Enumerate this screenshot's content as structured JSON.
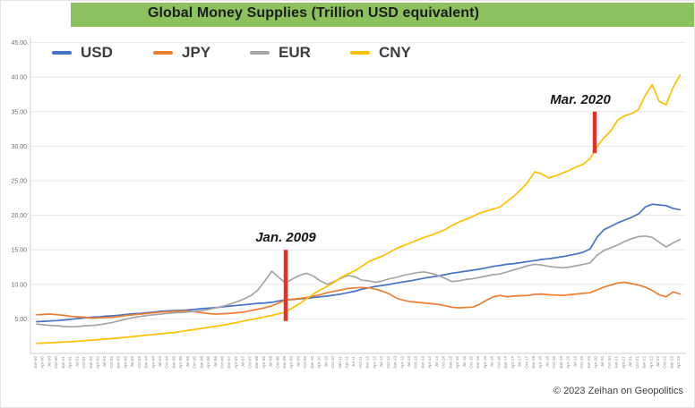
{
  "header": {
    "title": "Global Money Supplies (Trillion USD equivalent)",
    "bar_color": "#8cc25e"
  },
  "legend": [
    {
      "label": "USD",
      "color": "#4472c4"
    },
    {
      "label": "JPY",
      "color": "#ed7d31"
    },
    {
      "label": "EUR",
      "color": "#a5a5a5"
    },
    {
      "label": "CNY",
      "color": "#ffc000"
    }
  ],
  "footer": {
    "copyright": "© 2023 Zeihan on Geopolitics"
  },
  "colors": {
    "annotation_red": "#e53228",
    "gridline": "#e8e8e8",
    "axis": "#cccccc"
  },
  "chart_data": {
    "type": "line",
    "title": "Global Money Supplies (Trillion USD equivalent)",
    "ylabel": "Trillion USD equivalent",
    "ylim": [
      0,
      45
    ],
    "yticks": [
      5,
      10,
      15,
      20,
      25,
      30,
      35,
      40,
      45
    ],
    "grid": "horizontal",
    "legend_position": "top",
    "x_start_year": 2000.0,
    "x_step_years": 0.25,
    "x_tick_labels": [
      "Jan-00",
      "Apr-00",
      "Jul-00",
      "Oct-00",
      "Jan-01",
      "Apr-01",
      "Jul-01",
      "Oct-01",
      "Jan-02",
      "Apr-02",
      "Jul-02",
      "Oct-02",
      "Jan-03",
      "Apr-03",
      "Jul-03",
      "Oct-03",
      "Jan-04",
      "Apr-04",
      "Jul-04",
      "Oct-04",
      "Jan-05",
      "Apr-05",
      "Jul-05",
      "Oct-05",
      "Jan-06",
      "Apr-06",
      "Jul-06",
      "Oct-06",
      "Jan-07",
      "Apr-07",
      "Jul-07",
      "Oct-07",
      "Jan-08",
      "Apr-08",
      "Jul-08",
      "Oct-08",
      "Jan-09",
      "Apr-09",
      "Jul-09",
      "Oct-09",
      "Jan-10",
      "Apr-10",
      "Jul-10",
      "Oct-10",
      "Jan-11",
      "Apr-11",
      "Jul-11",
      "Oct-11",
      "Jan-12",
      "Apr-12",
      "Jul-12",
      "Oct-12",
      "Jan-13",
      "Apr-13",
      "Jul-13",
      "Oct-13",
      "Jan-14",
      "Apr-14",
      "Jul-14",
      "Oct-14",
      "Jan-15",
      "Apr-15",
      "Jul-15",
      "Oct-15",
      "Jan-16",
      "Apr-16",
      "Jul-16",
      "Oct-16",
      "Jan-17",
      "Apr-17",
      "Jul-17",
      "Oct-17",
      "Jan-18",
      "Apr-18",
      "Jul-18",
      "Oct-18",
      "Jan-19",
      "Apr-19",
      "Jul-19",
      "Oct-19",
      "Jan-20",
      "Apr-20",
      "Jul-20",
      "Oct-20",
      "Jan-21",
      "Apr-21",
      "Jul-21",
      "Oct-21",
      "Jan-22",
      "Apr-22",
      "Jul-22",
      "Oct-22",
      "Jan-23",
      "Apr-23"
    ],
    "series": [
      {
        "name": "USD",
        "color": "#4472c4",
        "values": [
          4.6,
          4.65,
          4.7,
          4.75,
          4.85,
          4.95,
          5.05,
          5.15,
          5.25,
          5.3,
          5.4,
          5.45,
          5.55,
          5.65,
          5.75,
          5.8,
          5.9,
          6.0,
          6.1,
          6.15,
          6.2,
          6.25,
          6.3,
          6.4,
          6.5,
          6.55,
          6.65,
          6.75,
          6.85,
          6.95,
          7.05,
          7.15,
          7.25,
          7.3,
          7.4,
          7.6,
          7.75,
          7.8,
          7.9,
          7.95,
          8.1,
          8.2,
          8.3,
          8.45,
          8.6,
          8.8,
          9.0,
          9.3,
          9.5,
          9.7,
          9.85,
          10.0,
          10.2,
          10.35,
          10.5,
          10.7,
          10.9,
          11.05,
          11.2,
          11.4,
          11.6,
          11.75,
          11.9,
          12.05,
          12.2,
          12.4,
          12.6,
          12.75,
          12.9,
          13.0,
          13.15,
          13.3,
          13.45,
          13.6,
          13.7,
          13.85,
          14.0,
          14.2,
          14.4,
          14.65,
          15.1,
          16.8,
          17.9,
          18.4,
          18.9,
          19.3,
          19.7,
          20.2,
          21.2,
          21.6,
          21.5,
          21.4,
          21.0,
          20.8
        ]
      },
      {
        "name": "JPY",
        "color": "#ed7d31",
        "values": [
          5.6,
          5.65,
          5.7,
          5.6,
          5.5,
          5.35,
          5.3,
          5.25,
          5.1,
          5.15,
          5.2,
          5.25,
          5.35,
          5.5,
          5.6,
          5.7,
          5.8,
          5.9,
          6.0,
          6.05,
          6.1,
          6.15,
          6.1,
          6.0,
          5.9,
          5.75,
          5.7,
          5.75,
          5.8,
          5.9,
          6.0,
          6.2,
          6.4,
          6.6,
          6.9,
          7.3,
          7.7,
          7.85,
          7.95,
          8.1,
          8.3,
          8.5,
          8.8,
          9.0,
          9.2,
          9.4,
          9.5,
          9.55,
          9.5,
          9.3,
          9.0,
          8.6,
          8.0,
          7.7,
          7.5,
          7.4,
          7.3,
          7.2,
          7.1,
          6.9,
          6.7,
          6.6,
          6.65,
          6.7,
          7.1,
          7.7,
          8.2,
          8.4,
          8.2,
          8.3,
          8.35,
          8.4,
          8.55,
          8.6,
          8.5,
          8.45,
          8.4,
          8.5,
          8.6,
          8.7,
          8.8,
          9.2,
          9.6,
          9.9,
          10.2,
          10.3,
          10.1,
          9.9,
          9.6,
          9.1,
          8.5,
          8.2,
          8.9,
          8.6
        ]
      },
      {
        "name": "EUR",
        "color": "#a5a5a5",
        "values": [
          4.25,
          4.15,
          4.05,
          4.0,
          3.9,
          3.85,
          3.9,
          4.0,
          4.05,
          4.15,
          4.3,
          4.5,
          4.75,
          5.0,
          5.2,
          5.35,
          5.5,
          5.6,
          5.7,
          5.8,
          5.9,
          5.95,
          6.0,
          6.1,
          6.25,
          6.4,
          6.6,
          6.85,
          7.15,
          7.5,
          7.9,
          8.4,
          9.2,
          10.5,
          11.9,
          11.0,
          10.2,
          10.8,
          11.3,
          11.6,
          11.2,
          10.5,
          10.0,
          10.4,
          10.9,
          11.3,
          11.1,
          10.6,
          10.5,
          10.3,
          10.5,
          10.8,
          11.0,
          11.3,
          11.5,
          11.7,
          11.8,
          11.6,
          11.3,
          10.9,
          10.4,
          10.5,
          10.7,
          10.8,
          11.0,
          11.2,
          11.4,
          11.5,
          11.8,
          12.1,
          12.4,
          12.7,
          12.9,
          12.8,
          12.6,
          12.5,
          12.4,
          12.5,
          12.7,
          12.9,
          13.1,
          14.2,
          14.9,
          15.3,
          15.7,
          16.2,
          16.6,
          16.9,
          17.0,
          16.8,
          16.1,
          15.4,
          16.0,
          16.5
        ]
      },
      {
        "name": "CNY",
        "color": "#ffc000",
        "values": [
          1.45,
          1.5,
          1.55,
          1.6,
          1.65,
          1.7,
          1.78,
          1.85,
          1.92,
          2.0,
          2.08,
          2.16,
          2.25,
          2.35,
          2.45,
          2.55,
          2.65,
          2.75,
          2.85,
          2.95,
          3.05,
          3.2,
          3.35,
          3.5,
          3.65,
          3.8,
          3.95,
          4.1,
          4.3,
          4.5,
          4.7,
          4.9,
          5.1,
          5.3,
          5.5,
          5.75,
          6.0,
          6.6,
          7.2,
          7.9,
          8.6,
          9.2,
          9.7,
          10.3,
          11.0,
          11.5,
          12.0,
          12.6,
          13.3,
          13.7,
          14.1,
          14.6,
          15.2,
          15.6,
          16.0,
          16.4,
          16.8,
          17.1,
          17.5,
          17.9,
          18.5,
          19.0,
          19.4,
          19.8,
          20.3,
          20.6,
          20.9,
          21.2,
          22.0,
          22.8,
          23.7,
          24.8,
          26.3,
          26.0,
          25.4,
          25.7,
          26.1,
          26.5,
          27.0,
          27.4,
          28.2,
          29.9,
          31.2,
          32.2,
          33.8,
          34.4,
          34.7,
          35.3,
          37.4,
          38.9,
          36.5,
          36.0,
          38.5,
          40.3
        ]
      }
    ],
    "annotations": [
      {
        "label": "Jan. 2009",
        "year": 2009.0,
        "line_value_range": [
          4.7,
          15.0
        ],
        "label_dx": 0
      },
      {
        "label": "Mar. 2020",
        "year": 2020.17,
        "line_value_range": [
          29.0,
          35.0
        ],
        "label_dx": -16
      }
    ]
  }
}
